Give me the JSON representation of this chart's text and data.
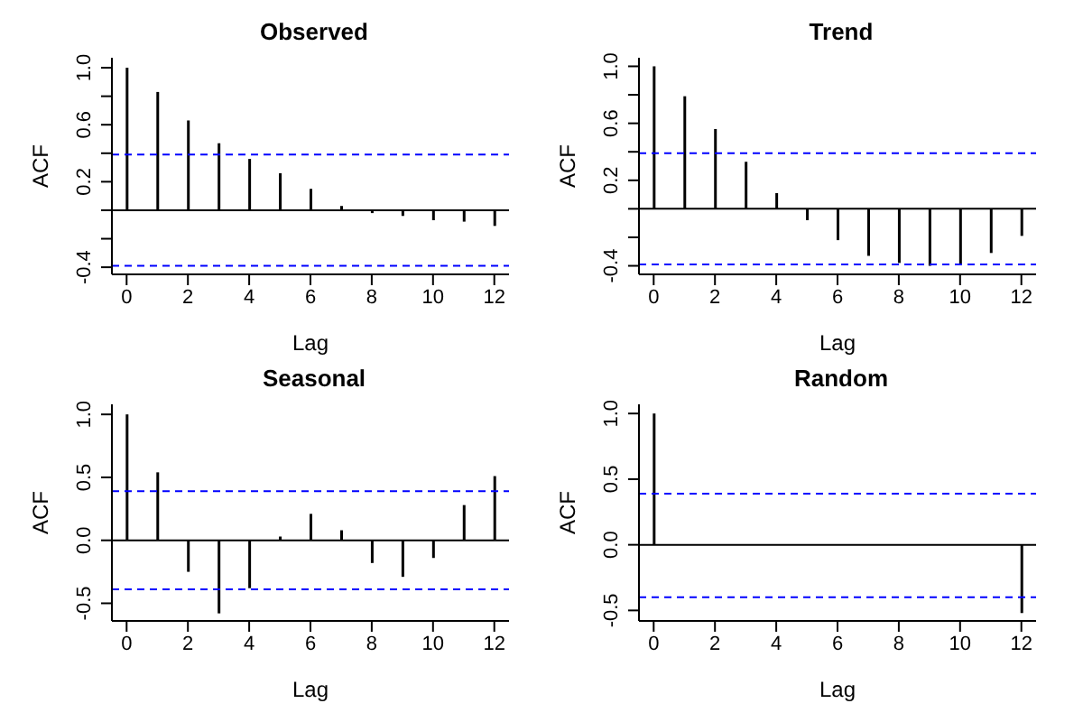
{
  "chart_data": [
    {
      "type": "bar",
      "title": "Observed",
      "xlabel": "Lag",
      "ylabel": "ACF",
      "x": [
        0,
        1,
        2,
        3,
        4,
        5,
        6,
        7,
        8,
        9,
        10,
        11,
        12
      ],
      "values": [
        1.0,
        0.83,
        0.63,
        0.47,
        0.36,
        0.26,
        0.15,
        0.03,
        -0.02,
        -0.04,
        -0.07,
        -0.08,
        -0.11
      ],
      "color": "#000000",
      "xlim": [
        -0.48,
        12.48
      ],
      "xticks": [
        0,
        2,
        4,
        6,
        8,
        10,
        12
      ],
      "ylim": [
        -0.45,
        1.07
      ],
      "yticks": [
        -0.4,
        {
          "value": -0.2,
          "label": null
        },
        {
          "value": 0,
          "label": null
        },
        0.2,
        {
          "value": 0.4,
          "label": null
        },
        0.6,
        {
          "value": 0.8,
          "label": null
        },
        {
          "value": 1,
          "label": "1.0"
        }
      ],
      "ref_lines": [
        {
          "axis": "y",
          "value": 0,
          "color": "#000000",
          "line_style": "solid"
        },
        {
          "axis": "y",
          "value": 0.39,
          "color": "#0000ff",
          "line_style": "dashed"
        },
        {
          "axis": "y",
          "value": -0.39,
          "color": "#0000ff",
          "line_style": "dashed"
        }
      ],
      "grid": false
    },
    {
      "type": "bar",
      "title": "Trend",
      "xlabel": "Lag",
      "ylabel": "ACF",
      "x": [
        0,
        1,
        2,
        3,
        4,
        5,
        6,
        7,
        8,
        9,
        10,
        11,
        12
      ],
      "values": [
        1.0,
        0.79,
        0.56,
        0.33,
        0.11,
        -0.08,
        -0.22,
        -0.33,
        -0.38,
        -0.4,
        -0.39,
        -0.31,
        -0.19
      ],
      "color": "#000000",
      "xlim": [
        -0.48,
        12.48
      ],
      "xticks": [
        0,
        2,
        4,
        6,
        8,
        10,
        12
      ],
      "ylim": [
        -0.46,
        1.06
      ],
      "yticks": [
        -0.4,
        {
          "value": -0.2,
          "label": null
        },
        {
          "value": 0,
          "label": null
        },
        0.2,
        {
          "value": 0.4,
          "label": null
        },
        0.6,
        {
          "value": 0.8,
          "label": null
        },
        {
          "value": 1,
          "label": "1.0"
        }
      ],
      "ref_lines": [
        {
          "axis": "y",
          "value": 0,
          "color": "#000000",
          "line_style": "solid"
        },
        {
          "axis": "y",
          "value": 0.39,
          "color": "#0000ff",
          "line_style": "dashed"
        },
        {
          "axis": "y",
          "value": -0.39,
          "color": "#0000ff",
          "line_style": "dashed"
        }
      ],
      "grid": false
    },
    {
      "type": "bar",
      "title": "Seasonal",
      "xlabel": "Lag",
      "ylabel": "ACF",
      "x": [
        0,
        1,
        2,
        3,
        4,
        5,
        6,
        7,
        8,
        9,
        10,
        11,
        12
      ],
      "values": [
        1.0,
        0.54,
        -0.25,
        -0.58,
        -0.38,
        0.03,
        0.21,
        0.08,
        -0.18,
        -0.29,
        -0.14,
        0.28,
        0.51
      ],
      "color": "#000000",
      "xlim": [
        -0.48,
        12.48
      ],
      "xticks": [
        0,
        2,
        4,
        6,
        8,
        10,
        12
      ],
      "ylim": [
        -0.64,
        1.08
      ],
      "yticks": [
        -0.5,
        {
          "value": 0,
          "label": "0.0"
        },
        0.5,
        {
          "value": 1,
          "label": "1.0"
        }
      ],
      "ref_lines": [
        {
          "axis": "y",
          "value": 0,
          "color": "#000000",
          "line_style": "solid"
        },
        {
          "axis": "y",
          "value": 0.39,
          "color": "#0000ff",
          "line_style": "dashed"
        },
        {
          "axis": "y",
          "value": -0.39,
          "color": "#0000ff",
          "line_style": "dashed"
        }
      ],
      "grid": false
    },
    {
      "type": "bar",
      "title": "Random",
      "xlabel": "Lag",
      "ylabel": "ACF",
      "x": [
        0,
        1,
        2,
        3,
        4,
        5,
        6,
        7,
        8,
        9,
        10,
        11,
        12
      ],
      "values": [
        1.0,
        0,
        0,
        0,
        0,
        0,
        0,
        0,
        0,
        0,
        0,
        0,
        -0.52
      ],
      "color": "#000000",
      "xlim": [
        -0.48,
        12.48
      ],
      "xticks": [
        0,
        2,
        4,
        6,
        8,
        10,
        12
      ],
      "ylim": [
        -0.58,
        1.07
      ],
      "yticks": [
        -0.5,
        {
          "value": 0,
          "label": "0.0"
        },
        0.5,
        {
          "value": 1,
          "label": "1.0"
        }
      ],
      "ref_lines": [
        {
          "axis": "y",
          "value": 0,
          "color": "#000000",
          "line_style": "solid"
        },
        {
          "axis": "y",
          "value": 0.39,
          "color": "#0000ff",
          "line_style": "dashed"
        },
        {
          "axis": "y",
          "value": -0.4,
          "color": "#0000ff",
          "line_style": "dashed"
        }
      ],
      "grid": false
    }
  ]
}
